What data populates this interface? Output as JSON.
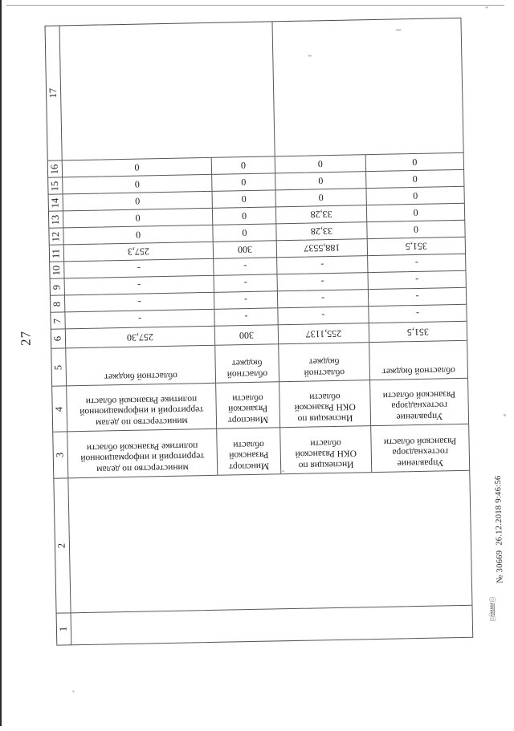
{
  "page_number": "27",
  "stamp": {
    "text": "№ 30669  26.12.2018 9:46:56"
  },
  "table": {
    "column_numbers": [
      "1",
      "2",
      "3",
      "4",
      "5",
      "6",
      "7",
      "8",
      "9",
      "10",
      "11",
      "12",
      "13",
      "14",
      "15",
      "16",
      "17"
    ],
    "rows": [
      {
        "name": "министерство по делам территорий и информационной политике Рязанской области",
        "c3": [
          "министерство по делам",
          "территорий и информационной",
          "политике Рязанской области"
        ],
        "c4": [
          "министерство по делам",
          "территорий и информационной",
          "политике Рязанской области"
        ],
        "c5": [
          "областной бюджет"
        ],
        "c6": "257,30",
        "c7": "-",
        "c8": "-",
        "c9": "-",
        "c10": "-",
        "c11": "257,3",
        "c12": "0",
        "c13": "0",
        "c14": "0",
        "c15": "0",
        "c16": "0"
      },
      {
        "name": "Минспорт Рязанской области",
        "c3": [
          "Минспорт",
          "Рязанской",
          "области"
        ],
        "c4": [
          "Минспорт",
          "Рязанской",
          "области"
        ],
        "c5": [
          "областной",
          "бюджет"
        ],
        "c6": "300",
        "c7": "-",
        "c8": "-",
        "c9": "-",
        "c10": "-",
        "c11": "300",
        "c12": "0",
        "c13": "0",
        "c14": "0",
        "c15": "0",
        "c16": "0"
      },
      {
        "name": "Инспекция по ОКН Рязанской области",
        "c3": [
          "Инспекция по",
          "ОКН Рязанской",
          "области"
        ],
        "c4": [
          "Инспекция по",
          "ОКН Рязанской",
          "области"
        ],
        "c5": [
          "областной",
          "бюджет"
        ],
        "c6": "255,1137",
        "c7": "-",
        "c8": "-",
        "c9": "-",
        "c10": "-",
        "c11": "188,5537",
        "c12": "33,28",
        "c13": "33,28",
        "c14": "0",
        "c15": "0",
        "c16": "0"
      },
      {
        "name": "Управление гостехнадзора Рязанской области",
        "c3": [
          "Управление",
          "гостехнадзора",
          "Рязанской области"
        ],
        "c4": [
          "Управление",
          "гостехнадзора",
          "Рязанской области"
        ],
        "c5": [
          "областной бюджет"
        ],
        "c6": "351,5",
        "c7": "-",
        "c8": "-",
        "c9": "-",
        "c10": "-",
        "c11": "351,5",
        "c12": "0",
        "c13": "0",
        "c14": "0",
        "c15": "0",
        "c16": "0"
      }
    ]
  }
}
